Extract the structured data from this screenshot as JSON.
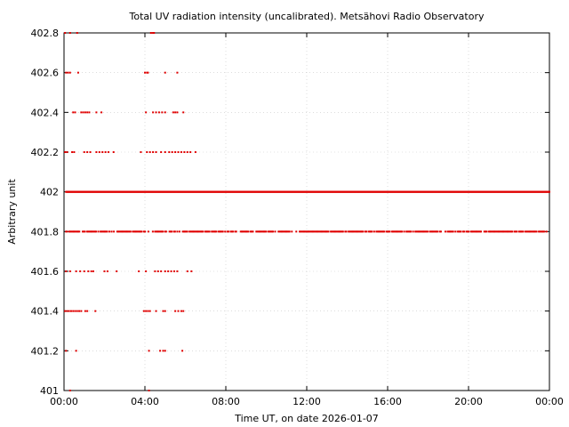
{
  "chart_data": {
    "type": "scatter",
    "title": "Total UV radiation intensity (uncalibrated). Metsähovi Radio Observatory",
    "xlabel": "Time UT, on date 2026-01-07",
    "ylabel": "Arbitrary unit",
    "x_unit": "hours UT",
    "xlim": [
      0,
      24
    ],
    "ylim": [
      401,
      402.8
    ],
    "grid": true,
    "legend": "none",
    "marker_color": "#e00000",
    "x_ticks": [
      {
        "value": 0,
        "label": "00:00"
      },
      {
        "value": 4,
        "label": "04:00"
      },
      {
        "value": 8,
        "label": "08:00"
      },
      {
        "value": 12,
        "label": "12:00"
      },
      {
        "value": 16,
        "label": "16:00"
      },
      {
        "value": 20,
        "label": "20:00"
      },
      {
        "value": 24,
        "label": "00:00"
      }
    ],
    "y_ticks": [
      {
        "value": 401,
        "label": "401"
      },
      {
        "value": 401.2,
        "label": "401.2"
      },
      {
        "value": 401.4,
        "label": "401.4"
      },
      {
        "value": 401.6,
        "label": "401.6"
      },
      {
        "value": 401.8,
        "label": "401.8"
      },
      {
        "value": 402,
        "label": "402"
      },
      {
        "value": 402.2,
        "label": "402.2"
      },
      {
        "value": 402.4,
        "label": "402.4"
      },
      {
        "value": 402.6,
        "label": "402.6"
      },
      {
        "value": 402.8,
        "label": "402.8"
      }
    ],
    "series": [
      {
        "level_segments": [
          {
            "y": 402.0,
            "x_start": 0.1,
            "x_end": 24.0,
            "density": "high"
          },
          {
            "y": 401.8,
            "x_start": 0.1,
            "x_end": 24.0,
            "density": "medium"
          }
        ],
        "points": [
          {
            "x": 0.05,
            "y": 402.8
          },
          {
            "x": 0.3,
            "y": 402.8
          },
          {
            "x": 0.65,
            "y": 402.8
          },
          {
            "x": 4.3,
            "y": 402.8
          },
          {
            "x": 4.4,
            "y": 402.8
          },
          {
            "x": 4.45,
            "y": 402.8
          },
          {
            "x": 0.1,
            "y": 402.6
          },
          {
            "x": 0.2,
            "y": 402.6
          },
          {
            "x": 0.3,
            "y": 402.6
          },
          {
            "x": 0.7,
            "y": 402.6
          },
          {
            "x": 4.0,
            "y": 402.6
          },
          {
            "x": 4.1,
            "y": 402.6
          },
          {
            "x": 4.15,
            "y": 402.6
          },
          {
            "x": 5.0,
            "y": 402.6
          },
          {
            "x": 5.6,
            "y": 402.6
          },
          {
            "x": 0.45,
            "y": 402.4
          },
          {
            "x": 0.55,
            "y": 402.4
          },
          {
            "x": 0.85,
            "y": 402.4
          },
          {
            "x": 0.95,
            "y": 402.4
          },
          {
            "x": 1.05,
            "y": 402.4
          },
          {
            "x": 1.15,
            "y": 402.4
          },
          {
            "x": 1.25,
            "y": 402.4
          },
          {
            "x": 1.6,
            "y": 402.4
          },
          {
            "x": 1.85,
            "y": 402.4
          },
          {
            "x": 4.05,
            "y": 402.4
          },
          {
            "x": 4.4,
            "y": 402.4
          },
          {
            "x": 4.55,
            "y": 402.4
          },
          {
            "x": 4.7,
            "y": 402.4
          },
          {
            "x": 4.85,
            "y": 402.4
          },
          {
            "x": 5.0,
            "y": 402.4
          },
          {
            "x": 5.4,
            "y": 402.4
          },
          {
            "x": 5.5,
            "y": 402.4
          },
          {
            "x": 5.6,
            "y": 402.4
          },
          {
            "x": 5.9,
            "y": 402.4
          },
          {
            "x": 0.05,
            "y": 402.2
          },
          {
            "x": 0.15,
            "y": 402.2
          },
          {
            "x": 0.4,
            "y": 402.2
          },
          {
            "x": 0.5,
            "y": 402.2
          },
          {
            "x": 1.0,
            "y": 402.2
          },
          {
            "x": 1.15,
            "y": 402.2
          },
          {
            "x": 1.3,
            "y": 402.2
          },
          {
            "x": 1.6,
            "y": 402.2
          },
          {
            "x": 1.75,
            "y": 402.2
          },
          {
            "x": 1.9,
            "y": 402.2
          },
          {
            "x": 2.05,
            "y": 402.2
          },
          {
            "x": 2.2,
            "y": 402.2
          },
          {
            "x": 2.45,
            "y": 402.2
          },
          {
            "x": 3.8,
            "y": 402.2
          },
          {
            "x": 4.1,
            "y": 402.2
          },
          {
            "x": 4.25,
            "y": 402.2
          },
          {
            "x": 4.4,
            "y": 402.2
          },
          {
            "x": 4.55,
            "y": 402.2
          },
          {
            "x": 4.8,
            "y": 402.2
          },
          {
            "x": 5.0,
            "y": 402.2
          },
          {
            "x": 5.2,
            "y": 402.2
          },
          {
            "x": 5.35,
            "y": 402.2
          },
          {
            "x": 5.5,
            "y": 402.2
          },
          {
            "x": 5.65,
            "y": 402.2
          },
          {
            "x": 5.8,
            "y": 402.2
          },
          {
            "x": 5.95,
            "y": 402.2
          },
          {
            "x": 6.1,
            "y": 402.2
          },
          {
            "x": 6.25,
            "y": 402.2
          },
          {
            "x": 6.5,
            "y": 402.2
          },
          {
            "x": 0.1,
            "y": 401.6
          },
          {
            "x": 0.3,
            "y": 401.6
          },
          {
            "x": 0.6,
            "y": 401.6
          },
          {
            "x": 0.8,
            "y": 401.6
          },
          {
            "x": 1.0,
            "y": 401.6
          },
          {
            "x": 1.2,
            "y": 401.6
          },
          {
            "x": 1.35,
            "y": 401.6
          },
          {
            "x": 1.45,
            "y": 401.6
          },
          {
            "x": 2.0,
            "y": 401.6
          },
          {
            "x": 2.15,
            "y": 401.6
          },
          {
            "x": 2.6,
            "y": 401.6
          },
          {
            "x": 3.7,
            "y": 401.6
          },
          {
            "x": 4.05,
            "y": 401.6
          },
          {
            "x": 4.5,
            "y": 401.6
          },
          {
            "x": 4.65,
            "y": 401.6
          },
          {
            "x": 4.8,
            "y": 401.6
          },
          {
            "x": 5.0,
            "y": 401.6
          },
          {
            "x": 5.15,
            "y": 401.6
          },
          {
            "x": 5.3,
            "y": 401.6
          },
          {
            "x": 5.45,
            "y": 401.6
          },
          {
            "x": 5.6,
            "y": 401.6
          },
          {
            "x": 6.1,
            "y": 401.6
          },
          {
            "x": 6.3,
            "y": 401.6
          },
          {
            "x": 0.05,
            "y": 401.4
          },
          {
            "x": 0.15,
            "y": 401.4
          },
          {
            "x": 0.25,
            "y": 401.4
          },
          {
            "x": 0.35,
            "y": 401.4
          },
          {
            "x": 0.45,
            "y": 401.4
          },
          {
            "x": 0.55,
            "y": 401.4
          },
          {
            "x": 0.65,
            "y": 401.4
          },
          {
            "x": 0.75,
            "y": 401.4
          },
          {
            "x": 0.85,
            "y": 401.4
          },
          {
            "x": 1.05,
            "y": 401.4
          },
          {
            "x": 1.15,
            "y": 401.4
          },
          {
            "x": 1.55,
            "y": 401.4
          },
          {
            "x": 3.95,
            "y": 401.4
          },
          {
            "x": 4.05,
            "y": 401.4
          },
          {
            "x": 4.15,
            "y": 401.4
          },
          {
            "x": 4.25,
            "y": 401.4
          },
          {
            "x": 4.55,
            "y": 401.4
          },
          {
            "x": 4.9,
            "y": 401.4
          },
          {
            "x": 5.0,
            "y": 401.4
          },
          {
            "x": 5.5,
            "y": 401.4
          },
          {
            "x": 5.65,
            "y": 401.4
          },
          {
            "x": 5.8,
            "y": 401.4
          },
          {
            "x": 5.9,
            "y": 401.4
          },
          {
            "x": 0.1,
            "y": 401.2
          },
          {
            "x": 0.6,
            "y": 401.2
          },
          {
            "x": 4.2,
            "y": 401.2
          },
          {
            "x": 4.75,
            "y": 401.2
          },
          {
            "x": 4.9,
            "y": 401.2
          },
          {
            "x": 5.0,
            "y": 401.2
          },
          {
            "x": 5.85,
            "y": 401.2
          },
          {
            "x": 0.3,
            "y": 401.0
          },
          {
            "x": 4.2,
            "y": 401.0
          }
        ]
      }
    ]
  }
}
